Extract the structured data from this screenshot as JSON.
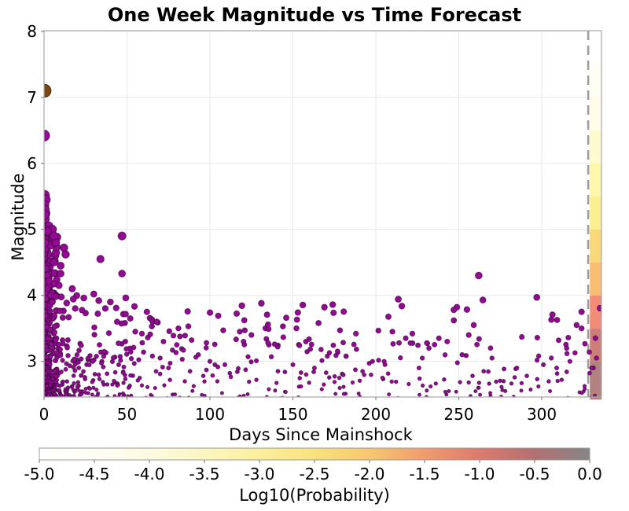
{
  "figure": {
    "title": "One Week Magnitude vs Time Forecast",
    "background": "#ffffff"
  },
  "chart_data": {
    "type": "scatter",
    "title": "One Week Magnitude vs Time Forecast",
    "xlabel": "Days Since Mainshock",
    "ylabel": "Magnitude",
    "xlim": [
      0,
      336
    ],
    "ylim": [
      2.46,
      8.01
    ],
    "x_ticks": [
      0,
      50,
      100,
      150,
      200,
      250,
      300
    ],
    "y_ticks": [
      3,
      4,
      5,
      6,
      7,
      8
    ],
    "grid": true,
    "grid_color": "#e7e7e7",
    "spine_color": "#aeaeae",
    "tick_color": "#888888",
    "mainshock": {
      "day": 0.4,
      "magnitude": 7.1,
      "fill": "#7a4612",
      "edge": "#45280a"
    },
    "aftershock_style": {
      "fill": "#930993",
      "stroke": "#240024",
      "stroke_opacity": 0.55,
      "stroke_width": 1,
      "size_base": 4,
      "size_per_mag": 2.6
    },
    "aftershocks": [
      [
        0,
        6.42
      ],
      [
        0.4,
        5.52
      ],
      [
        1,
        5.45
      ],
      [
        0.2,
        5.37
      ],
      [
        0.5,
        5.3
      ],
      [
        0.3,
        5.22
      ],
      [
        0.2,
        5.0
      ],
      [
        2,
        4.97
      ],
      [
        6,
        4.9
      ],
      [
        47,
        4.9
      ],
      [
        12,
        4.72
      ],
      [
        13,
        4.62
      ],
      [
        34,
        4.55
      ],
      [
        6,
        4.5
      ],
      [
        10,
        4.45
      ],
      [
        1,
        4.4
      ],
      [
        10,
        4.33
      ],
      [
        47,
        4.33
      ],
      [
        2,
        4.3
      ],
      [
        3,
        4.22
      ],
      [
        9,
        4.15
      ],
      [
        17,
        4.1
      ],
      [
        30,
        4.02
      ],
      [
        24,
        3.96
      ],
      [
        33,
        3.92
      ],
      [
        40,
        3.9
      ],
      [
        7,
        3.98
      ],
      [
        5,
        3.9
      ],
      [
        1,
        3.95
      ],
      [
        2,
        4.1
      ],
      [
        4,
        4.0
      ],
      [
        262,
        4.3
      ],
      [
        297,
        3.97
      ],
      [
        324,
        3.75
      ],
      [
        247,
        3.78
      ],
      [
        247,
        3.62
      ],
      [
        259,
        3.55
      ],
      [
        256,
        3.4
      ],
      [
        288,
        3.37
      ],
      [
        321,
        3.55
      ],
      [
        324,
        3.5
      ],
      [
        316,
        3.36
      ],
      [
        315,
        3.2
      ],
      [
        317,
        3.0
      ],
      [
        309,
        2.9
      ],
      [
        301,
        2.95
      ],
      [
        291,
        2.78
      ],
      [
        285,
        2.9
      ],
      [
        270,
        3.05
      ],
      [
        265,
        2.85
      ],
      [
        277,
        2.7
      ],
      [
        252,
        3.1
      ],
      [
        243,
        3.3
      ],
      [
        238,
        3.35
      ],
      [
        232,
        3.2
      ],
      [
        228,
        3.05
      ],
      [
        222,
        3.42
      ],
      [
        218,
        3.35
      ],
      [
        214,
        3.28
      ],
      [
        210,
        3.45
      ],
      [
        205,
        3.0
      ],
      [
        204,
        2.75
      ],
      [
        233,
        2.62
      ],
      [
        244,
        2.55
      ],
      [
        256,
        2.68
      ],
      [
        262,
        2.6
      ],
      [
        298,
        2.62
      ],
      [
        305,
        2.55
      ],
      [
        312,
        2.72
      ],
      [
        330,
        2.9
      ],
      [
        333,
        3.05
      ],
      [
        226,
        2.9
      ],
      [
        269,
        2.52
      ],
      [
        105,
        3.69
      ],
      [
        131,
        3.88
      ],
      [
        174,
        3.86
      ],
      [
        169,
        3.82
      ],
      [
        153,
        3.74
      ],
      [
        146,
        3.66
      ],
      [
        135,
        3.56
      ],
      [
        144,
        3.53
      ],
      [
        118,
        3.45
      ],
      [
        121,
        3.47
      ],
      [
        125,
        3.4
      ],
      [
        108,
        3.47
      ],
      [
        65,
        3.53
      ],
      [
        59,
        3.42
      ],
      [
        64,
        3.41
      ],
      [
        81,
        3.5
      ],
      [
        87,
        3.53
      ],
      [
        78,
        3.39
      ],
      [
        85,
        3.39
      ],
      [
        80,
        3.25
      ],
      [
        83,
        3.19
      ],
      [
        84,
        3.17
      ],
      [
        54,
        3.21
      ],
      [
        60,
        3.14
      ],
      [
        134,
        3.34
      ],
      [
        135,
        3.28
      ],
      [
        139,
        3.26
      ],
      [
        154,
        3.24
      ],
      [
        167,
        3.18
      ],
      [
        172,
        3.13
      ],
      [
        176,
        3.09
      ],
      [
        182,
        3.08
      ],
      [
        188,
        3.42
      ],
      [
        196,
        2.97
      ],
      [
        198,
        3.0
      ],
      [
        137,
        3.07
      ],
      [
        123,
        3.07
      ],
      [
        100,
        3.0
      ],
      [
        103,
        2.95
      ],
      [
        109,
        2.95
      ],
      [
        93,
        3.1
      ],
      [
        70,
        3.05
      ],
      [
        75,
        2.9
      ],
      [
        88,
        2.85
      ],
      [
        96,
        2.78
      ],
      [
        112,
        2.82
      ],
      [
        128,
        2.72
      ],
      [
        141,
        2.85
      ],
      [
        150,
        2.95
      ],
      [
        158,
        2.8
      ],
      [
        163,
        2.9
      ],
      [
        178,
        2.75
      ],
      [
        186,
        2.68
      ],
      [
        192,
        2.85
      ],
      [
        44,
        3.6
      ],
      [
        49,
        3.3
      ],
      [
        52,
        3.65
      ],
      [
        45,
        2.95
      ],
      [
        51,
        2.6
      ],
      [
        55,
        3.45
      ],
      [
        62,
        3.75
      ],
      [
        68,
        3.6
      ],
      [
        72,
        3.3
      ]
    ],
    "dense_clusters": [
      {
        "count": 150,
        "day_range": [
          0,
          1.2
        ],
        "day_bias": 1.0,
        "mag_range": [
          2.42,
          5.3
        ],
        "mag_bias": 2.2
      },
      {
        "count": 420,
        "day_range": [
          0,
          8
        ],
        "day_bias": 2.2,
        "mag_range": [
          2.42,
          5.05
        ],
        "mag_bias": 3.2
      },
      {
        "count": 260,
        "day_range": [
          0,
          55
        ],
        "day_bias": 1.9,
        "mag_range": [
          2.42,
          4.0
        ],
        "mag_bias": 2.9
      },
      {
        "count": 330,
        "day_range": [
          0,
          336
        ],
        "day_bias": 1.7,
        "mag_range": [
          2.42,
          3.3
        ],
        "mag_bias": 2.0
      },
      {
        "count": 55,
        "day_range": [
          50,
          336
        ],
        "day_bias": 1.0,
        "mag_range": [
          3.25,
          3.95
        ],
        "mag_bias": 1.8
      }
    ],
    "seed": 42,
    "forecast_line": {
      "day": 328,
      "color": "#9e9e9e",
      "dash": [
        12,
        7
      ],
      "width": 2.6
    },
    "forecast_strip": {
      "day_start": 329,
      "day_end": 336,
      "bins": [
        {
          "mag_min": 2.42,
          "mag_max": 3.0,
          "color": "#b28280"
        },
        {
          "mag_min": 3.0,
          "mag_max": 3.5,
          "color": "#cd7e79"
        },
        {
          "mag_min": 3.5,
          "mag_max": 4.0,
          "color": "#f28c76"
        },
        {
          "mag_min": 4.0,
          "mag_max": 4.5,
          "color": "#f8bd72"
        },
        {
          "mag_min": 4.5,
          "mag_max": 5.0,
          "color": "#f9d87a"
        },
        {
          "mag_min": 5.0,
          "mag_max": 5.5,
          "color": "#fbf091"
        },
        {
          "mag_min": 5.5,
          "mag_max": 6.0,
          "color": "#fdf6ab"
        },
        {
          "mag_min": 6.0,
          "mag_max": 6.5,
          "color": "#fefad0"
        },
        {
          "mag_min": 6.5,
          "mag_max": 7.0,
          "color": "#fffcea"
        },
        {
          "mag_min": 7.0,
          "mag_max": 7.5,
          "color": "#fffef5"
        },
        {
          "mag_min": 7.5,
          "mag_max": 8.01,
          "color": "#ffffff"
        }
      ]
    },
    "colorbar": {
      "label": "Log10(Probability)",
      "range": [
        -5,
        0
      ],
      "tick_labels": [
        "-5.0",
        "-4.5",
        "-4.0",
        "-3.5",
        "-3.0",
        "-2.5",
        "-2.0",
        "-1.5",
        "-1.0",
        "-0.5",
        "0.0"
      ],
      "gradient_stops": [
        [
          0.0,
          "#ffffff"
        ],
        [
          0.1,
          "#fefdf3"
        ],
        [
          0.2,
          "#fdfae2"
        ],
        [
          0.3,
          "#fcf6c0"
        ],
        [
          0.4,
          "#fbef9b"
        ],
        [
          0.5,
          "#f9e27e"
        ],
        [
          0.6,
          "#f8c76f"
        ],
        [
          0.7,
          "#f09b6e"
        ],
        [
          0.8,
          "#dc7a6d"
        ],
        [
          0.9,
          "#b37173"
        ],
        [
          1.0,
          "#868686"
        ]
      ]
    }
  }
}
